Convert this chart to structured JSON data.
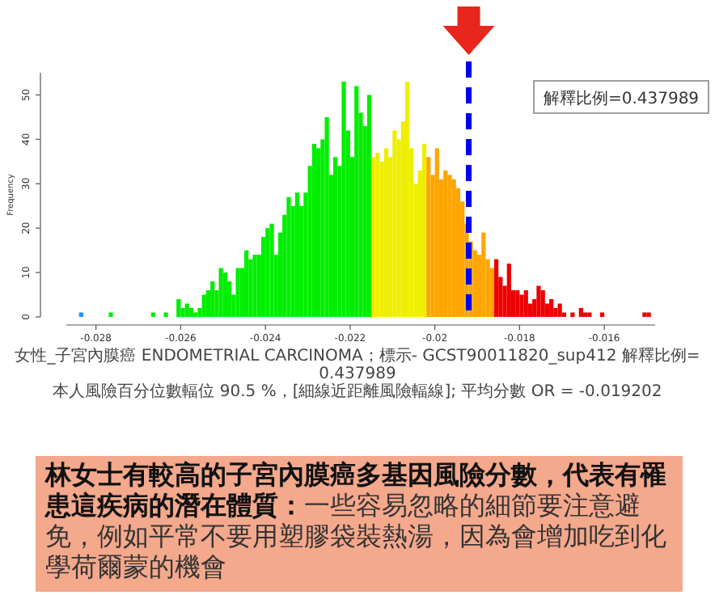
{
  "chart_data": {
    "type": "histogram",
    "ylabel": "Frequency",
    "bins": [
      -0.0284,
      -0.0283,
      -0.0282,
      -0.0281,
      -0.028,
      -0.0279,
      -0.0278,
      -0.0277,
      -0.0276,
      -0.0275,
      -0.0274,
      -0.0273,
      -0.0272,
      -0.0271,
      -0.027,
      -0.0269,
      -0.0268,
      -0.0267,
      -0.0266,
      -0.0265,
      -0.0264,
      -0.0263,
      -0.0262,
      -0.0261,
      -0.026,
      -0.0259,
      -0.0258,
      -0.0257,
      -0.0256,
      -0.0255,
      -0.0254,
      -0.0253,
      -0.0252,
      -0.0251,
      -0.025,
      -0.0249,
      -0.0248,
      -0.0247,
      -0.0246,
      -0.0245,
      -0.0244,
      -0.0243,
      -0.0242,
      -0.0241,
      -0.024,
      -0.0239,
      -0.0238,
      -0.0237,
      -0.0236,
      -0.0235,
      -0.0234,
      -0.0233,
      -0.0232,
      -0.0231,
      -0.023,
      -0.0229,
      -0.0228,
      -0.0227,
      -0.0226,
      -0.0225,
      -0.0224,
      -0.0223,
      -0.0222,
      -0.0221,
      -0.022,
      -0.0219,
      -0.0218,
      -0.0217,
      -0.0216,
      -0.0215,
      -0.0214,
      -0.0213,
      -0.0212,
      -0.0211,
      -0.021,
      -0.0209,
      -0.0208,
      -0.0207,
      -0.0206,
      -0.0205,
      -0.0204,
      -0.0203,
      -0.0202,
      -0.0201,
      -0.02,
      -0.0199,
      -0.0198,
      -0.0197,
      -0.0196,
      -0.0195,
      -0.0194,
      -0.0193,
      -0.0192,
      -0.0191,
      -0.019,
      -0.0189,
      -0.0188,
      -0.0187,
      -0.0186,
      -0.0185,
      -0.0184,
      -0.0183,
      -0.0182,
      -0.0181,
      -0.018,
      -0.0179,
      -0.0178,
      -0.0177,
      -0.0176,
      -0.0175,
      -0.0174,
      -0.0173,
      -0.0172,
      -0.0171,
      -0.017,
      -0.0169,
      -0.0168,
      -0.0167,
      -0.0166,
      -0.0165,
      -0.0164,
      -0.0163,
      -0.0162,
      -0.0161,
      -0.016,
      -0.0159,
      -0.0158,
      -0.0157,
      -0.0156,
      -0.0155,
      -0.0154,
      -0.0153,
      -0.0152,
      -0.0151,
      -0.015,
      -0.0149
    ],
    "values": [
      1,
      0,
      0,
      0,
      0,
      0,
      0,
      1,
      0,
      0,
      0,
      0,
      0,
      0,
      0,
      0,
      0,
      1,
      0,
      0,
      1,
      0,
      0,
      4,
      2,
      3,
      2,
      1,
      2,
      5,
      6,
      8,
      6,
      11,
      10,
      8,
      5,
      11,
      11,
      15,
      13,
      14,
      14,
      18,
      20,
      21,
      14,
      19,
      23,
      27,
      25,
      28,
      25,
      28,
      34,
      39,
      38,
      40,
      45,
      32,
      36,
      34,
      53,
      42,
      36,
      52,
      46,
      43,
      50,
      36,
      37,
      35,
      38,
      36,
      42,
      40,
      44,
      53,
      38,
      30,
      33,
      39,
      36,
      32,
      38,
      31,
      33,
      32,
      31,
      29,
      26,
      21,
      17,
      15,
      14,
      19,
      13,
      11,
      13,
      9,
      7,
      12,
      6,
      6,
      5,
      6,
      3,
      4,
      7,
      6,
      3,
      4,
      2,
      3,
      1,
      0,
      1,
      0,
      2,
      1,
      1,
      0,
      0,
      1,
      0,
      0,
      0,
      0,
      0,
      0,
      0,
      0,
      0,
      1,
      1
    ],
    "colors": [
      "#1e90ff",
      "#00ee00",
      "#00ee00",
      "#00ee00",
      "#00ee00",
      "#00ee00",
      "#00ee00",
      "#00ee00",
      "#00ee00",
      "#00ee00",
      "#00ee00",
      "#00ee00",
      "#00ee00",
      "#00ee00",
      "#00ee00",
      "#00ee00",
      "#00ee00",
      "#00ee00",
      "#00ee00",
      "#00ee00",
      "#00ee00",
      "#00ee00",
      "#00ee00",
      "#00ee00",
      "#00ee00",
      "#00ee00",
      "#00ee00",
      "#00ee00",
      "#00ee00",
      "#00ee00",
      "#00ee00",
      "#00ee00",
      "#00ee00",
      "#00ee00",
      "#00ee00",
      "#00ee00",
      "#00ee00",
      "#00ee00",
      "#00ee00",
      "#00ee00",
      "#00ee00",
      "#00ee00",
      "#00ee00",
      "#00ee00",
      "#00ee00",
      "#00ee00",
      "#00ee00",
      "#00ee00",
      "#00ee00",
      "#00ee00",
      "#00ee00",
      "#00ee00",
      "#00ee00",
      "#00ee00",
      "#00ee00",
      "#00ee00",
      "#00ee00",
      "#00ee00",
      "#00ee00",
      "#00ee00",
      "#00ee00",
      "#00ee00",
      "#00ee00",
      "#00ee00",
      "#00ee00",
      "#00ee00",
      "#00ee00",
      "#00ee00",
      "#00ee00",
      "#eeee00",
      "#eeee00",
      "#eeee00",
      "#eeee00",
      "#eeee00",
      "#eeee00",
      "#eeee00",
      "#eeee00",
      "#eeee00",
      "#eeee00",
      "#eeee00",
      "#eeee00",
      "#eeee00",
      "#ffa500",
      "#ffa500",
      "#ffa500",
      "#ffa500",
      "#ffa500",
      "#ffa500",
      "#ffa500",
      "#ffa500",
      "#ffa500",
      "#ffa500",
      "#ffa500",
      "#ffa500",
      "#ffa500",
      "#ffa500",
      "#ffa500",
      "#ffa500",
      "#ee0000",
      "#ee0000",
      "#ee0000",
      "#ee0000",
      "#ee0000",
      "#ee0000",
      "#ee0000",
      "#ee0000",
      "#ee0000",
      "#ee0000",
      "#ee0000",
      "#ee0000",
      "#ee0000",
      "#ee0000",
      "#ee0000",
      "#ee0000",
      "#ee0000",
      "#ee0000",
      "#ee0000",
      "#ee0000",
      "#ee0000",
      "#ee0000",
      "#ee0000",
      "#ee0000",
      "#ee0000",
      "#ee0000",
      "#ee0000",
      "#ee0000",
      "#ee0000",
      "#ee0000",
      "#ee0000",
      "#ee0000",
      "#ee0000",
      "#ee0000",
      "#ee0000",
      "#ee0000",
      "#ee0000"
    ],
    "xlim": [
      -0.0287,
      -0.0148
    ],
    "xticks": [
      -0.028,
      -0.026,
      -0.024,
      -0.022,
      -0.02,
      -0.018,
      -0.016
    ],
    "ylim": [
      0,
      55
    ],
    "yticks": [
      0,
      10,
      20,
      30,
      40,
      50
    ],
    "grid": false,
    "ref_lines": [
      {
        "axis": "x",
        "value": -0.0192,
        "color": "#0000ee",
        "line_style": "dashed"
      }
    ],
    "annotations": [
      "解釋比例=0.437989",
      "女性_子宮內膜癌 ENDOMETRIAL CARCINOMA；標示- GCST90011820_sup412 解釋比例= 0.437989",
      "本人風險百分位數輻位 90.5 %，[細線近距離風險輻線]; 平均分數 OR = -0.019202",
      "林女士有較高的子宮內膜癌多基因風險分數，代表有罹患這疾病的潛在體質：",
      "一些容易忽略的細節要注意避免，例如平常不要用塑膠袋裝熱湯，因為會增加吃到化學荷爾蒙的機會"
    ]
  }
}
